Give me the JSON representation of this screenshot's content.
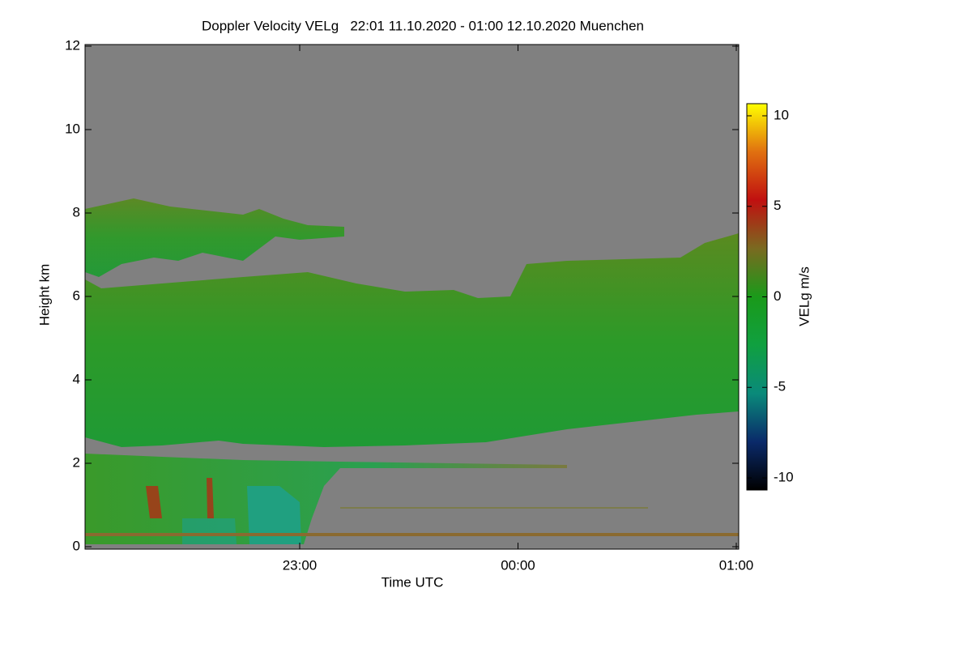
{
  "chart_data": {
    "type": "heatmap",
    "title": "Doppler Velocity VELg   22:01 11.10.2020 - 01:00 12.10.2020 Muenchen",
    "xlabel": "Time UTC",
    "ylabel": "Height km",
    "xlim": [
      22.0167,
      25.0
    ],
    "xticks": [
      {
        "value": 23,
        "label": "23:00"
      },
      {
        "value": 24,
        "label": "00:00"
      },
      {
        "value": 25,
        "label": "01:00"
      }
    ],
    "ylim": [
      0,
      12
    ],
    "yticks": [
      0,
      2,
      4,
      6,
      8,
      10,
      12
    ],
    "background_color": "#808080",
    "colorbar": {
      "label": "VELg m/s",
      "lim": [
        -10.67,
        10.67
      ],
      "ticks": [
        -10,
        -5,
        0,
        5,
        10
      ],
      "colors": [
        "#000000",
        "#0a2a6a",
        "#0a8a7a",
        "#10a040",
        "#1a9a1a",
        "#7a6a20",
        "#c01010",
        "#e07010",
        "#ffff00"
      ]
    }
  }
}
